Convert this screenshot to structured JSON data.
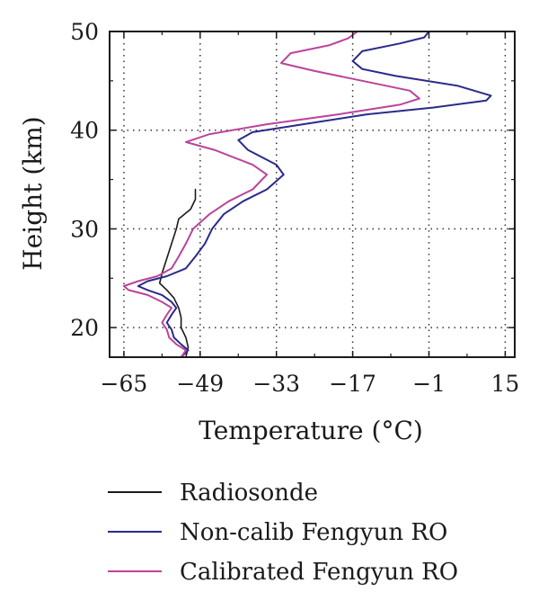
{
  "chart_data": {
    "type": "line",
    "xlabel": "Temperature (°C)",
    "ylabel": "Height (km)",
    "xlim": [
      -68,
      17
    ],
    "ylim": [
      17,
      50
    ],
    "xticks": [
      -65,
      -49,
      -33,
      -17,
      -1,
      15
    ],
    "yticks": [
      20,
      30,
      40,
      50
    ],
    "grid": true,
    "grid_style": "dotted",
    "legend_position": "below",
    "series": [
      {
        "name": "Radiosonde",
        "color": "#1a1a1a",
        "points": [
          [
            -52,
            17
          ],
          [
            -51.5,
            18
          ],
          [
            -52,
            19
          ],
          [
            -53,
            20
          ],
          [
            -53,
            21
          ],
          [
            -53.5,
            22
          ],
          [
            -54.5,
            23
          ],
          [
            -56,
            23.8
          ],
          [
            -57.5,
            24.5
          ],
          [
            -57,
            25.5
          ],
          [
            -56,
            27
          ],
          [
            -55,
            28.5
          ],
          [
            -54,
            30
          ],
          [
            -53.5,
            31
          ],
          [
            -51,
            32
          ],
          [
            -50,
            33
          ],
          [
            -50,
            34
          ]
        ]
      },
      {
        "name": "Non-calib Fengyun RO",
        "color": "#2a2a8a",
        "points": [
          [
            -53,
            17
          ],
          [
            -51.5,
            17.7
          ],
          [
            -53,
            18.3
          ],
          [
            -54.5,
            19
          ],
          [
            -55,
            19.8
          ],
          [
            -56,
            20.5
          ],
          [
            -55,
            21.3
          ],
          [
            -54,
            22
          ],
          [
            -55,
            22.6
          ],
          [
            -57,
            23.3
          ],
          [
            -60,
            23.8
          ],
          [
            -62,
            24.2
          ],
          [
            -60,
            24.7
          ],
          [
            -56,
            25.2
          ],
          [
            -52,
            26
          ],
          [
            -50,
            27.2
          ],
          [
            -48,
            28.5
          ],
          [
            -46.5,
            30
          ],
          [
            -44,
            31.5
          ],
          [
            -40,
            32.8
          ],
          [
            -35,
            34
          ],
          [
            -31.5,
            35.5
          ],
          [
            -33,
            36.5
          ],
          [
            -39,
            38
          ],
          [
            -41,
            39
          ],
          [
            -38,
            39.8
          ],
          [
            -26,
            40.7
          ],
          [
            -14,
            41.6
          ],
          [
            0,
            42.3
          ],
          [
            11,
            43
          ],
          [
            12,
            43.5
          ],
          [
            5,
            44.5
          ],
          [
            -8,
            45.5
          ],
          [
            -15,
            46.2
          ],
          [
            -17,
            47
          ],
          [
            -15,
            48
          ],
          [
            -7,
            48.8
          ],
          [
            -2,
            49.4
          ],
          [
            -1,
            50
          ]
        ]
      },
      {
        "name": "Calibrated Fengyun RO",
        "color": "#bb4499",
        "points": [
          [
            -53,
            17
          ],
          [
            -52,
            17.7
          ],
          [
            -54,
            18.3
          ],
          [
            -55.5,
            19
          ],
          [
            -56,
            19.8
          ],
          [
            -57,
            20.5
          ],
          [
            -56,
            21.3
          ],
          [
            -55,
            22
          ],
          [
            -57,
            22.6
          ],
          [
            -60,
            23.3
          ],
          [
            -64,
            23.8
          ],
          [
            -65,
            24.2
          ],
          [
            -62,
            24.7
          ],
          [
            -58,
            25.2
          ],
          [
            -55,
            26
          ],
          [
            -53.5,
            27.2
          ],
          [
            -52,
            28.5
          ],
          [
            -50.5,
            30
          ],
          [
            -47,
            31.5
          ],
          [
            -43,
            32.8
          ],
          [
            -38,
            34
          ],
          [
            -35,
            35.5
          ],
          [
            -38,
            36.5
          ],
          [
            -46,
            38
          ],
          [
            -52,
            38.8
          ],
          [
            -47,
            39.6
          ],
          [
            -35,
            40.6
          ],
          [
            -20,
            41.6
          ],
          [
            -7,
            42.6
          ],
          [
            -3,
            43.2
          ],
          [
            -5,
            44
          ],
          [
            -15,
            45
          ],
          [
            -25,
            46
          ],
          [
            -32,
            46.8
          ],
          [
            -30,
            47.8
          ],
          [
            -22,
            48.6
          ],
          [
            -18,
            49.3
          ],
          [
            -16,
            50
          ]
        ]
      }
    ]
  }
}
